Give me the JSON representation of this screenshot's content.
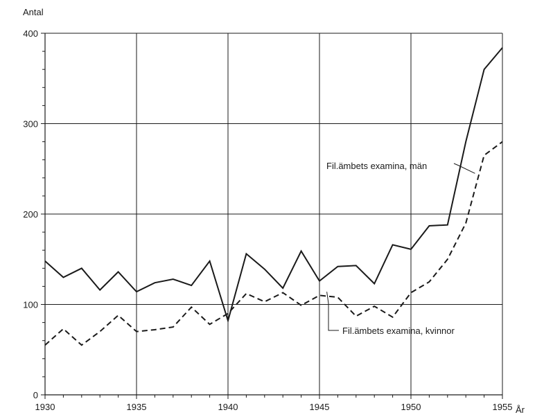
{
  "chart_data": {
    "type": "line",
    "ylabel": "Antal",
    "xlabel": "År",
    "xlim": [
      1930,
      1955
    ],
    "ylim": [
      0,
      400
    ],
    "x_major_ticks": [
      1930,
      1935,
      1940,
      1945,
      1950,
      1955
    ],
    "y_major_ticks": [
      0,
      100,
      200,
      300,
      400
    ],
    "x_tick_labels": [
      "1930",
      "1935",
      "1940",
      "1945",
      "1950",
      "1955"
    ],
    "y_tick_labels": [
      "0",
      "100",
      "200",
      "300",
      "400"
    ],
    "grid": true,
    "x": [
      1930,
      1931,
      1932,
      1933,
      1934,
      1935,
      1936,
      1937,
      1938,
      1939,
      1940,
      1941,
      1942,
      1943,
      1944,
      1945,
      1946,
      1947,
      1948,
      1949,
      1950,
      1951,
      1952,
      1953,
      1954,
      1955
    ],
    "series": [
      {
        "name": "Fil.ämbets examina, män",
        "style": "solid",
        "color": "#1a1a1a",
        "values": [
          148,
          130,
          140,
          116,
          136,
          114,
          124,
          128,
          121,
          148,
          82,
          156,
          139,
          118,
          159,
          126,
          142,
          143,
          123,
          166,
          161,
          187,
          188,
          280,
          360,
          384
        ]
      },
      {
        "name": "Fil.ämbets examina, kvinnor",
        "style": "dashed",
        "color": "#1a1a1a",
        "values": [
          55,
          73,
          55,
          70,
          88,
          70,
          72,
          75,
          97,
          78,
          90,
          112,
          103,
          113,
          99,
          110,
          108,
          87,
          98,
          86,
          113,
          125,
          150,
          190,
          265,
          280
        ]
      }
    ],
    "annotations": [
      {
        "text": "Fil.ämbets examina, män",
        "series": 0,
        "target": [
          1953.5,
          245
        ]
      },
      {
        "text": "Fil.ämbets examina, kvinnor",
        "series": 1,
        "target": [
          1945.4,
          114
        ]
      }
    ]
  }
}
